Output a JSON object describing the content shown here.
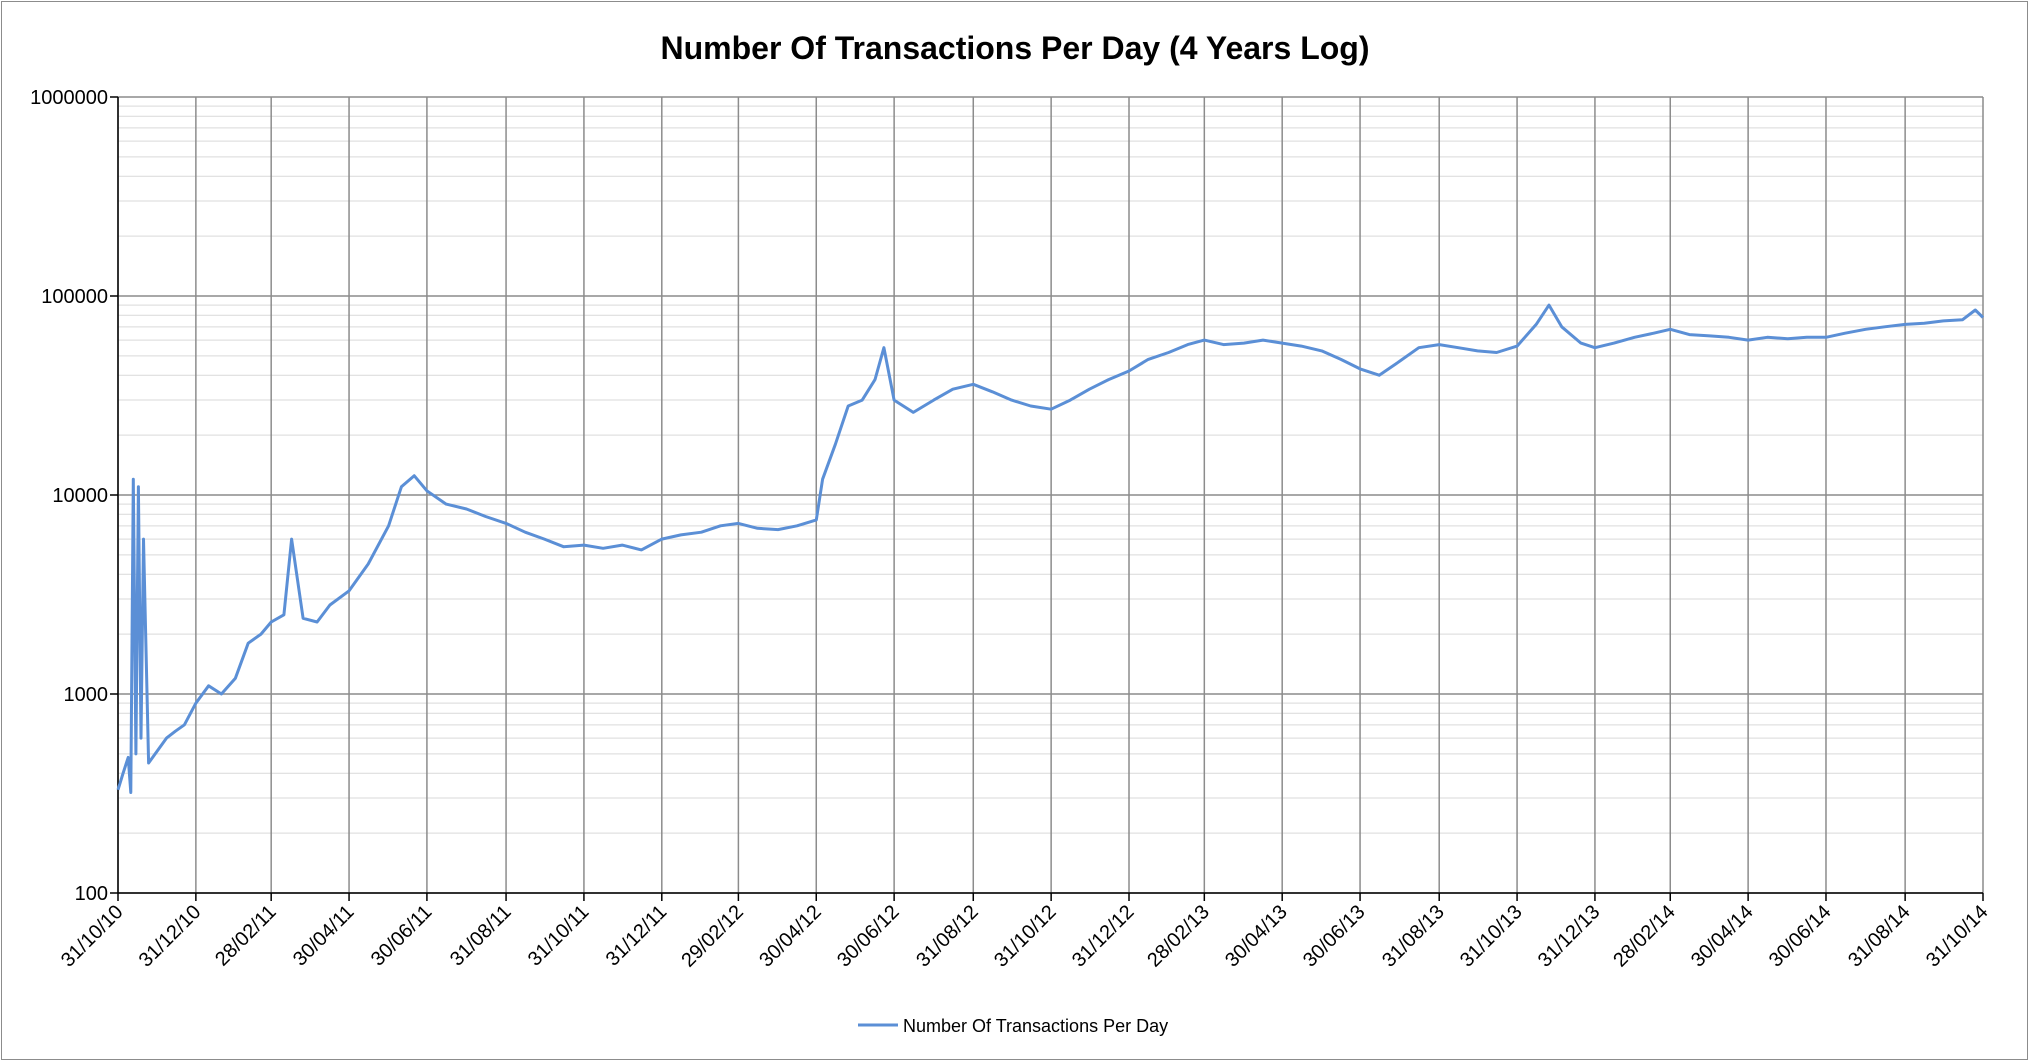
{
  "chart_data": {
    "type": "line",
    "title": "Number Of Transactions Per Day (4 Years Log)",
    "xlabel": "",
    "ylabel": "",
    "y_scale": "log",
    "ylim": [
      100,
      1000000
    ],
    "y_ticks": [
      "100",
      "1000",
      "10000",
      "100000",
      "1000000"
    ],
    "x_range": [
      "2010-10-31",
      "2014-10-31"
    ],
    "x_tick_dates": [
      "2010-10-31",
      "2010-12-31",
      "2011-02-28",
      "2011-04-30",
      "2011-06-30",
      "2011-08-31",
      "2011-10-31",
      "2011-12-31",
      "2012-02-29",
      "2012-04-30",
      "2012-06-30",
      "2012-08-31",
      "2012-10-31",
      "2012-12-31",
      "2013-02-28",
      "2013-04-30",
      "2013-06-30",
      "2013-08-31",
      "2013-10-31",
      "2013-12-31",
      "2014-02-28",
      "2014-04-30",
      "2014-06-30",
      "2014-08-31",
      "2014-10-31"
    ],
    "x_tick_labels": [
      "31/10/10",
      "31/12/10",
      "28/02/11",
      "30/04/11",
      "30/06/11",
      "31/08/11",
      "31/10/11",
      "31/12/11",
      "29/02/12",
      "30/04/12",
      "30/06/12",
      "31/08/12",
      "31/10/12",
      "31/12/12",
      "28/02/13",
      "30/04/13",
      "30/06/13",
      "31/08/13",
      "31/10/13",
      "31/12/13",
      "28/02/14",
      "30/04/14",
      "30/06/14",
      "31/08/14",
      "31/10/14"
    ],
    "grid": true,
    "legend_position": "bottom",
    "series": [
      {
        "name": "Number Of Transactions Per Day",
        "color": "#5b8fd6",
        "points": [
          [
            "2010-10-31",
            330
          ],
          [
            "2010-11-04",
            400
          ],
          [
            "2010-11-08",
            480
          ],
          [
            "2010-11-10",
            320
          ],
          [
            "2010-11-12",
            12000
          ],
          [
            "2010-11-14",
            500
          ],
          [
            "2010-11-16",
            11000
          ],
          [
            "2010-11-18",
            600
          ],
          [
            "2010-11-20",
            6000
          ],
          [
            "2010-11-24",
            450
          ],
          [
            "2010-12-01",
            520
          ],
          [
            "2010-12-08",
            600
          ],
          [
            "2010-12-15",
            650
          ],
          [
            "2010-12-22",
            700
          ],
          [
            "2010-12-31",
            900
          ],
          [
            "2011-01-10",
            1100
          ],
          [
            "2011-01-20",
            1000
          ],
          [
            "2011-01-31",
            1200
          ],
          [
            "2011-02-10",
            1800
          ],
          [
            "2011-02-20",
            2000
          ],
          [
            "2011-02-28",
            2300
          ],
          [
            "2011-03-10",
            2500
          ],
          [
            "2011-03-16",
            6000
          ],
          [
            "2011-03-25",
            2400
          ],
          [
            "2011-04-05",
            2300
          ],
          [
            "2011-04-15",
            2800
          ],
          [
            "2011-04-30",
            3300
          ],
          [
            "2011-05-15",
            4500
          ],
          [
            "2011-05-31",
            7000
          ],
          [
            "2011-06-10",
            11000
          ],
          [
            "2011-06-20",
            12500
          ],
          [
            "2011-06-30",
            10500
          ],
          [
            "2011-07-15",
            9000
          ],
          [
            "2011-07-31",
            8500
          ],
          [
            "2011-08-15",
            7800
          ],
          [
            "2011-08-31",
            7200
          ],
          [
            "2011-09-15",
            6500
          ],
          [
            "2011-09-30",
            6000
          ],
          [
            "2011-10-15",
            5500
          ],
          [
            "2011-10-31",
            5600
          ],
          [
            "2011-11-15",
            5400
          ],
          [
            "2011-11-30",
            5600
          ],
          [
            "2011-12-15",
            5300
          ],
          [
            "2011-12-31",
            6000
          ],
          [
            "2012-01-15",
            6300
          ],
          [
            "2012-01-31",
            6500
          ],
          [
            "2012-02-15",
            7000
          ],
          [
            "2012-02-29",
            7200
          ],
          [
            "2012-03-15",
            6800
          ],
          [
            "2012-03-31",
            6700
          ],
          [
            "2012-04-15",
            7000
          ],
          [
            "2012-04-30",
            7500
          ],
          [
            "2012-05-05",
            12000
          ],
          [
            "2012-05-15",
            18000
          ],
          [
            "2012-05-25",
            28000
          ],
          [
            "2012-06-05",
            30000
          ],
          [
            "2012-06-15",
            38000
          ],
          [
            "2012-06-22",
            55000
          ],
          [
            "2012-06-30",
            30000
          ],
          [
            "2012-07-15",
            26000
          ],
          [
            "2012-07-31",
            30000
          ],
          [
            "2012-08-15",
            34000
          ],
          [
            "2012-08-31",
            36000
          ],
          [
            "2012-09-15",
            33000
          ],
          [
            "2012-09-30",
            30000
          ],
          [
            "2012-10-15",
            28000
          ],
          [
            "2012-10-31",
            27000
          ],
          [
            "2012-11-15",
            30000
          ],
          [
            "2012-11-30",
            34000
          ],
          [
            "2012-12-15",
            38000
          ],
          [
            "2012-12-31",
            42000
          ],
          [
            "2013-01-15",
            48000
          ],
          [
            "2013-01-31",
            52000
          ],
          [
            "2013-02-15",
            57000
          ],
          [
            "2013-02-28",
            60000
          ],
          [
            "2013-03-15",
            57000
          ],
          [
            "2013-03-31",
            58000
          ],
          [
            "2013-04-15",
            60000
          ],
          [
            "2013-04-30",
            58000
          ],
          [
            "2013-05-15",
            56000
          ],
          [
            "2013-05-31",
            53000
          ],
          [
            "2013-06-15",
            48000
          ],
          [
            "2013-06-30",
            43000
          ],
          [
            "2013-07-15",
            40000
          ],
          [
            "2013-07-31",
            47000
          ],
          [
            "2013-08-15",
            55000
          ],
          [
            "2013-08-31",
            57000
          ],
          [
            "2013-09-15",
            55000
          ],
          [
            "2013-09-30",
            53000
          ],
          [
            "2013-10-15",
            52000
          ],
          [
            "2013-10-31",
            56000
          ],
          [
            "2013-11-15",
            72000
          ],
          [
            "2013-11-25",
            90000
          ],
          [
            "2013-12-05",
            70000
          ],
          [
            "2013-12-20",
            58000
          ],
          [
            "2013-12-31",
            55000
          ],
          [
            "2014-01-15",
            58000
          ],
          [
            "2014-01-31",
            62000
          ],
          [
            "2014-02-15",
            65000
          ],
          [
            "2014-02-28",
            68000
          ],
          [
            "2014-03-15",
            64000
          ],
          [
            "2014-03-31",
            63000
          ],
          [
            "2014-04-15",
            62000
          ],
          [
            "2014-04-30",
            60000
          ],
          [
            "2014-05-15",
            62000
          ],
          [
            "2014-05-31",
            61000
          ],
          [
            "2014-06-15",
            62000
          ],
          [
            "2014-06-30",
            62000
          ],
          [
            "2014-07-15",
            65000
          ],
          [
            "2014-07-31",
            68000
          ],
          [
            "2014-08-15",
            70000
          ],
          [
            "2014-08-31",
            72000
          ],
          [
            "2014-09-15",
            73000
          ],
          [
            "2014-09-30",
            75000
          ],
          [
            "2014-10-15",
            76000
          ],
          [
            "2014-10-25",
            85000
          ],
          [
            "2014-10-31",
            78000
          ]
        ]
      }
    ]
  }
}
